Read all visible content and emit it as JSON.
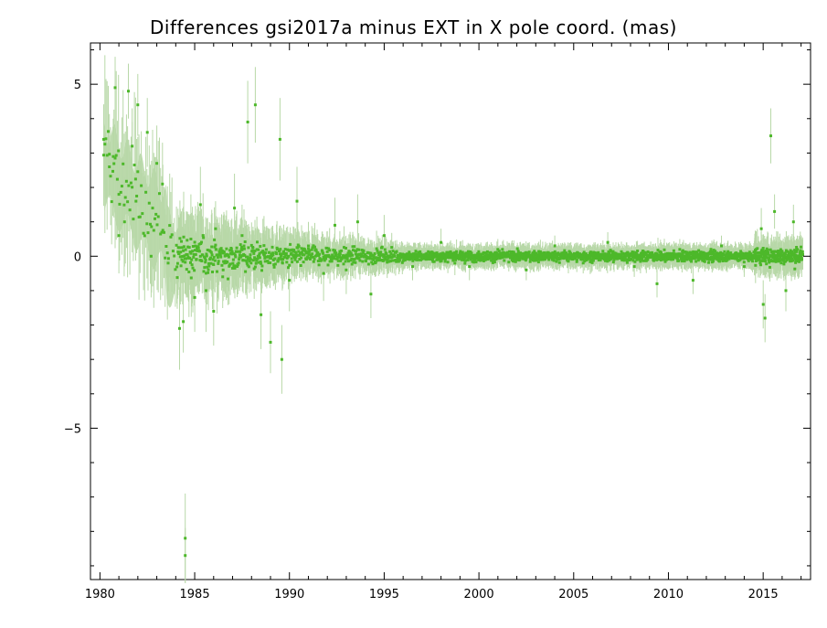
{
  "chart_data": {
    "type": "scatter",
    "title": "Differences gsi2017a minus EXT in X pole coord. (mas)",
    "xlabel": "",
    "ylabel": "",
    "xlim": [
      1979.5,
      2017.5
    ],
    "ylim": [
      -9.4,
      6.2
    ],
    "x_ticks": [
      1980,
      1985,
      1990,
      1995,
      2000,
      2005,
      2010,
      2015
    ],
    "x_tick_labels": [
      "1980",
      "1985",
      "1990",
      "1995",
      "2000",
      "2005",
      "2010",
      "2015"
    ],
    "y_ticks": [
      -5,
      0,
      5
    ],
    "y_tick_labels": [
      "−5",
      "0",
      "5"
    ],
    "grid": false,
    "legend": "none",
    "colors": {
      "points": "#4db82a",
      "error_bars": "#b8d8a8",
      "axes": "#000000"
    },
    "series": [
      {
        "points": [
          [
            1980.2,
            3.4,
            0.7
          ],
          [
            1980.5,
            2.6,
            0.9
          ],
          [
            1980.7,
            2.9,
            1.1
          ],
          [
            1980.8,
            4.9,
            0.9
          ],
          [
            1981.0,
            1.8,
            1.2
          ],
          [
            1981.0,
            0.6,
            1.1
          ],
          [
            1981.3,
            1.0,
            1.3
          ],
          [
            1981.5,
            4.8,
            0.8
          ],
          [
            1981.7,
            3.2,
            1.1
          ],
          [
            1981.9,
            1.6,
            0.9
          ],
          [
            1982.0,
            4.4,
            0.9
          ],
          [
            1982.5,
            3.6,
            1.0
          ],
          [
            1982.7,
            0.0,
            1.2
          ],
          [
            1983.0,
            2.7,
            1.1
          ],
          [
            1983.3,
            2.1,
            1.2
          ],
          [
            1983.6,
            -0.2,
            0.8
          ],
          [
            1984.2,
            -2.1,
            1.2
          ],
          [
            1984.4,
            -1.9,
            0.9
          ],
          [
            1984.5,
            -8.2,
            1.3
          ],
          [
            1984.5,
            -8.7,
            0.8
          ],
          [
            1984.8,
            0.5,
            1.3
          ],
          [
            1985.0,
            -1.2,
            1.0
          ],
          [
            1985.3,
            1.5,
            1.1
          ],
          [
            1985.6,
            -1.0,
            1.2
          ],
          [
            1986.0,
            -1.6,
            1.0
          ],
          [
            1986.1,
            0.8,
            0.8
          ],
          [
            1986.5,
            -0.4,
            0.9
          ],
          [
            1987.1,
            1.4,
            1.0
          ],
          [
            1987.5,
            0.6,
            0.9
          ],
          [
            1987.8,
            3.9,
            1.2
          ],
          [
            1988.2,
            4.4,
            1.1
          ],
          [
            1988.5,
            -1.7,
            1.0
          ],
          [
            1989.0,
            -2.5,
            0.9
          ],
          [
            1989.5,
            3.4,
            1.2
          ],
          [
            1989.6,
            -3.0,
            1.0
          ],
          [
            1990.0,
            -0.7,
            0.9
          ],
          [
            1990.4,
            1.6,
            1.0
          ],
          [
            1991.0,
            0.3,
            0.7
          ],
          [
            1991.8,
            -0.5,
            0.8
          ],
          [
            1992.4,
            0.9,
            0.8
          ],
          [
            1993.0,
            -0.4,
            0.7
          ],
          [
            1993.6,
            1.0,
            0.8
          ],
          [
            1994.3,
            -1.1,
            0.7
          ],
          [
            1995.0,
            0.6,
            0.6
          ],
          [
            1996.5,
            -0.3,
            0.4
          ],
          [
            1998.0,
            0.4,
            0.4
          ],
          [
            1999.5,
            -0.3,
            0.4
          ],
          [
            2001.0,
            0.2,
            0.3
          ],
          [
            2002.5,
            -0.4,
            0.3
          ],
          [
            2004.0,
            0.3,
            0.3
          ],
          [
            2005.5,
            -0.2,
            0.3
          ],
          [
            2006.8,
            0.4,
            0.3
          ],
          [
            2008.2,
            -0.3,
            0.3
          ],
          [
            2009.4,
            -0.8,
            0.4
          ],
          [
            2010.6,
            0.2,
            0.3
          ],
          [
            2011.3,
            -0.7,
            0.4
          ],
          [
            2012.8,
            0.3,
            0.3
          ],
          [
            2014.0,
            -0.3,
            0.3
          ],
          [
            2014.9,
            0.8,
            0.6
          ],
          [
            2015.0,
            -1.4,
            0.7
          ],
          [
            2015.1,
            -1.8,
            0.7
          ],
          [
            2015.4,
            3.5,
            0.8
          ],
          [
            2015.6,
            1.3,
            0.5
          ],
          [
            2016.2,
            -1.0,
            0.6
          ],
          [
            2016.6,
            1.0,
            0.5
          ],
          [
            2016.8,
            0.2,
            0.4
          ],
          [
            2017.0,
            -0.1,
            0.3
          ]
        ]
      }
    ]
  }
}
